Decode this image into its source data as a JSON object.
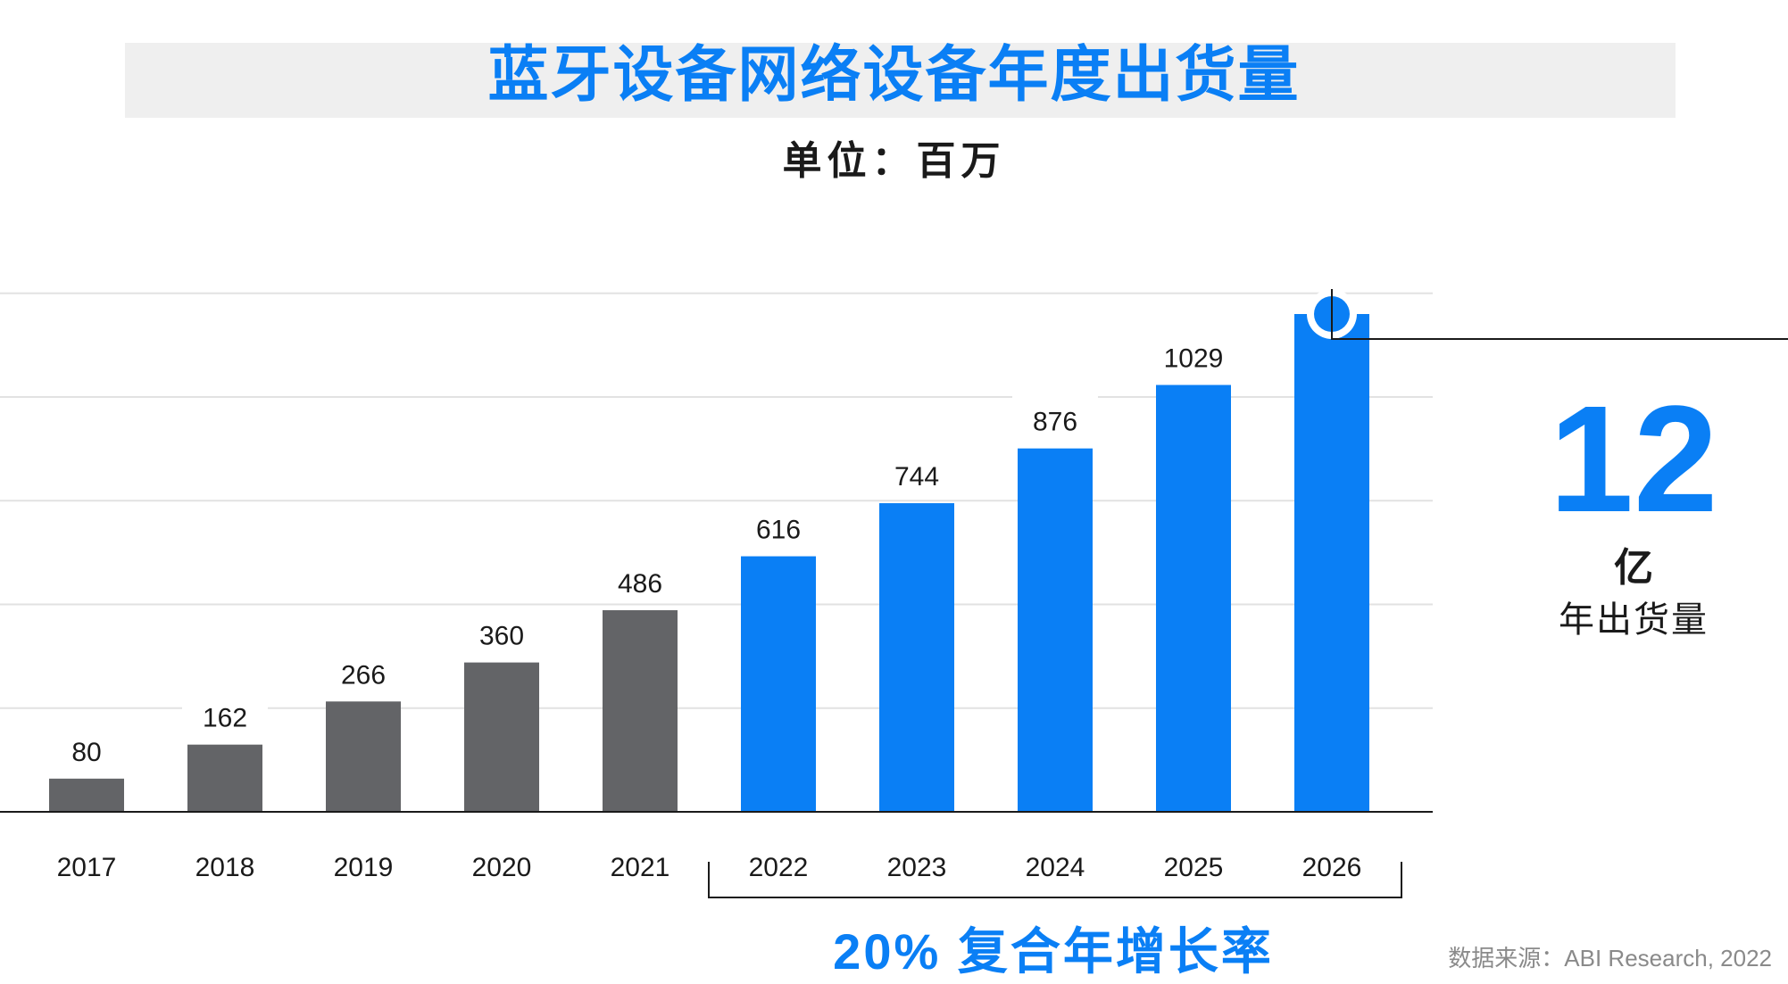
{
  "title": "蓝牙设备网络设备年度出货量",
  "unit_label": "单位：百万",
  "highlight": {
    "number": "12",
    "unit": "亿",
    "caption": "年出货量"
  },
  "cagr_label": "20% 复合年增长率",
  "source": "数据来源：ABI Research, 2022",
  "colors": {
    "historical": "#636467",
    "forecast": "#0a7ff5",
    "accent": "#0a7ff5"
  },
  "chart_data": {
    "type": "bar",
    "categories": [
      "2017",
      "2018",
      "2019",
      "2020",
      "2021",
      "2022",
      "2023",
      "2024",
      "2025",
      "2026"
    ],
    "values": [
      80,
      162,
      266,
      360,
      486,
      616,
      744,
      876,
      1029,
      1200
    ],
    "data_labels": [
      "80",
      "162",
      "266",
      "360",
      "486",
      "616",
      "744",
      "876",
      "1029",
      ""
    ],
    "forecast_start_index": 5,
    "ylim": [
      0,
      1500
    ],
    "grid": true,
    "title": "蓝牙设备网络设备年度出货量",
    "ylabel": "单位：百万",
    "xlabel": ""
  }
}
